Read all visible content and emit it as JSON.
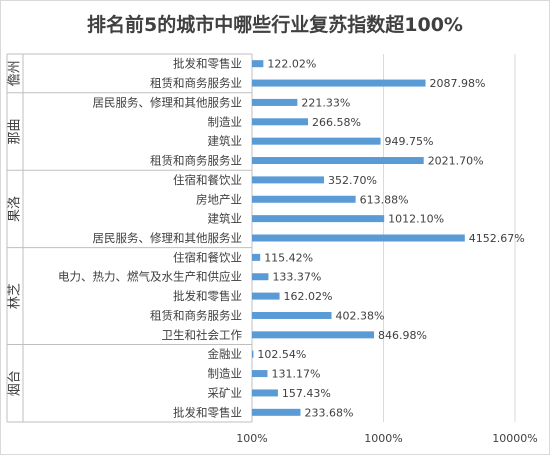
{
  "chart_data": {
    "type": "bar",
    "orientation": "horizontal",
    "title": "排名前5的城市中哪些行业复苏指数超100%",
    "x_scale": "log",
    "xlim": [
      100,
      10000
    ],
    "x_ticks": [
      "100%",
      "1000%",
      "10000%"
    ],
    "x_tick_values": [
      100,
      1000,
      10000
    ],
    "grid": "vertical",
    "bar_color": "#5b9bd5",
    "groups": [
      {
        "name": "儋州",
        "items": [
          {
            "category": "批发和零售业",
            "value": 122.02,
            "label": "122.02%"
          },
          {
            "category": "租赁和商务服务业",
            "value": 2087.98,
            "label": "2087.98%"
          }
        ]
      },
      {
        "name": "那曲",
        "items": [
          {
            "category": "居民服务、修理和其他服务业",
            "value": 221.33,
            "label": "221.33%"
          },
          {
            "category": "制造业",
            "value": 266.58,
            "label": "266.58%"
          },
          {
            "category": "建筑业",
            "value": 949.75,
            "label": "949.75%"
          },
          {
            "category": "租赁和商务服务业",
            "value": 2021.7,
            "label": "2021.70%"
          }
        ]
      },
      {
        "name": "果洛",
        "items": [
          {
            "category": "住宿和餐饮业",
            "value": 352.7,
            "label": "352.70%"
          },
          {
            "category": "房地产业",
            "value": 613.88,
            "label": "613.88%"
          },
          {
            "category": "建筑业",
            "value": 1012.1,
            "label": "1012.10%"
          },
          {
            "category": "居民服务、修理和其他服务业",
            "value": 4152.67,
            "label": "4152.67%"
          }
        ]
      },
      {
        "name": "林芝",
        "items": [
          {
            "category": "住宿和餐饮业",
            "value": 115.42,
            "label": "115.42%"
          },
          {
            "category": "电力、热力、燃气及水生产和供应业",
            "value": 133.37,
            "label": "133.37%"
          },
          {
            "category": "批发和零售业",
            "value": 162.02,
            "label": "162.02%"
          },
          {
            "category": "租赁和商务服务业",
            "value": 402.38,
            "label": "402.38%"
          },
          {
            "category": "卫生和社会工作",
            "value": 846.98,
            "label": "846.98%"
          }
        ]
      },
      {
        "name": "烟台",
        "items": [
          {
            "category": "金融业",
            "value": 102.54,
            "label": "102.54%"
          },
          {
            "category": "制造业",
            "value": 131.17,
            "label": "131.17%"
          },
          {
            "category": "采矿业",
            "value": 157.43,
            "label": "157.43%"
          },
          {
            "category": "批发和零售业",
            "value": 233.68,
            "label": "233.68%"
          }
        ]
      }
    ]
  }
}
